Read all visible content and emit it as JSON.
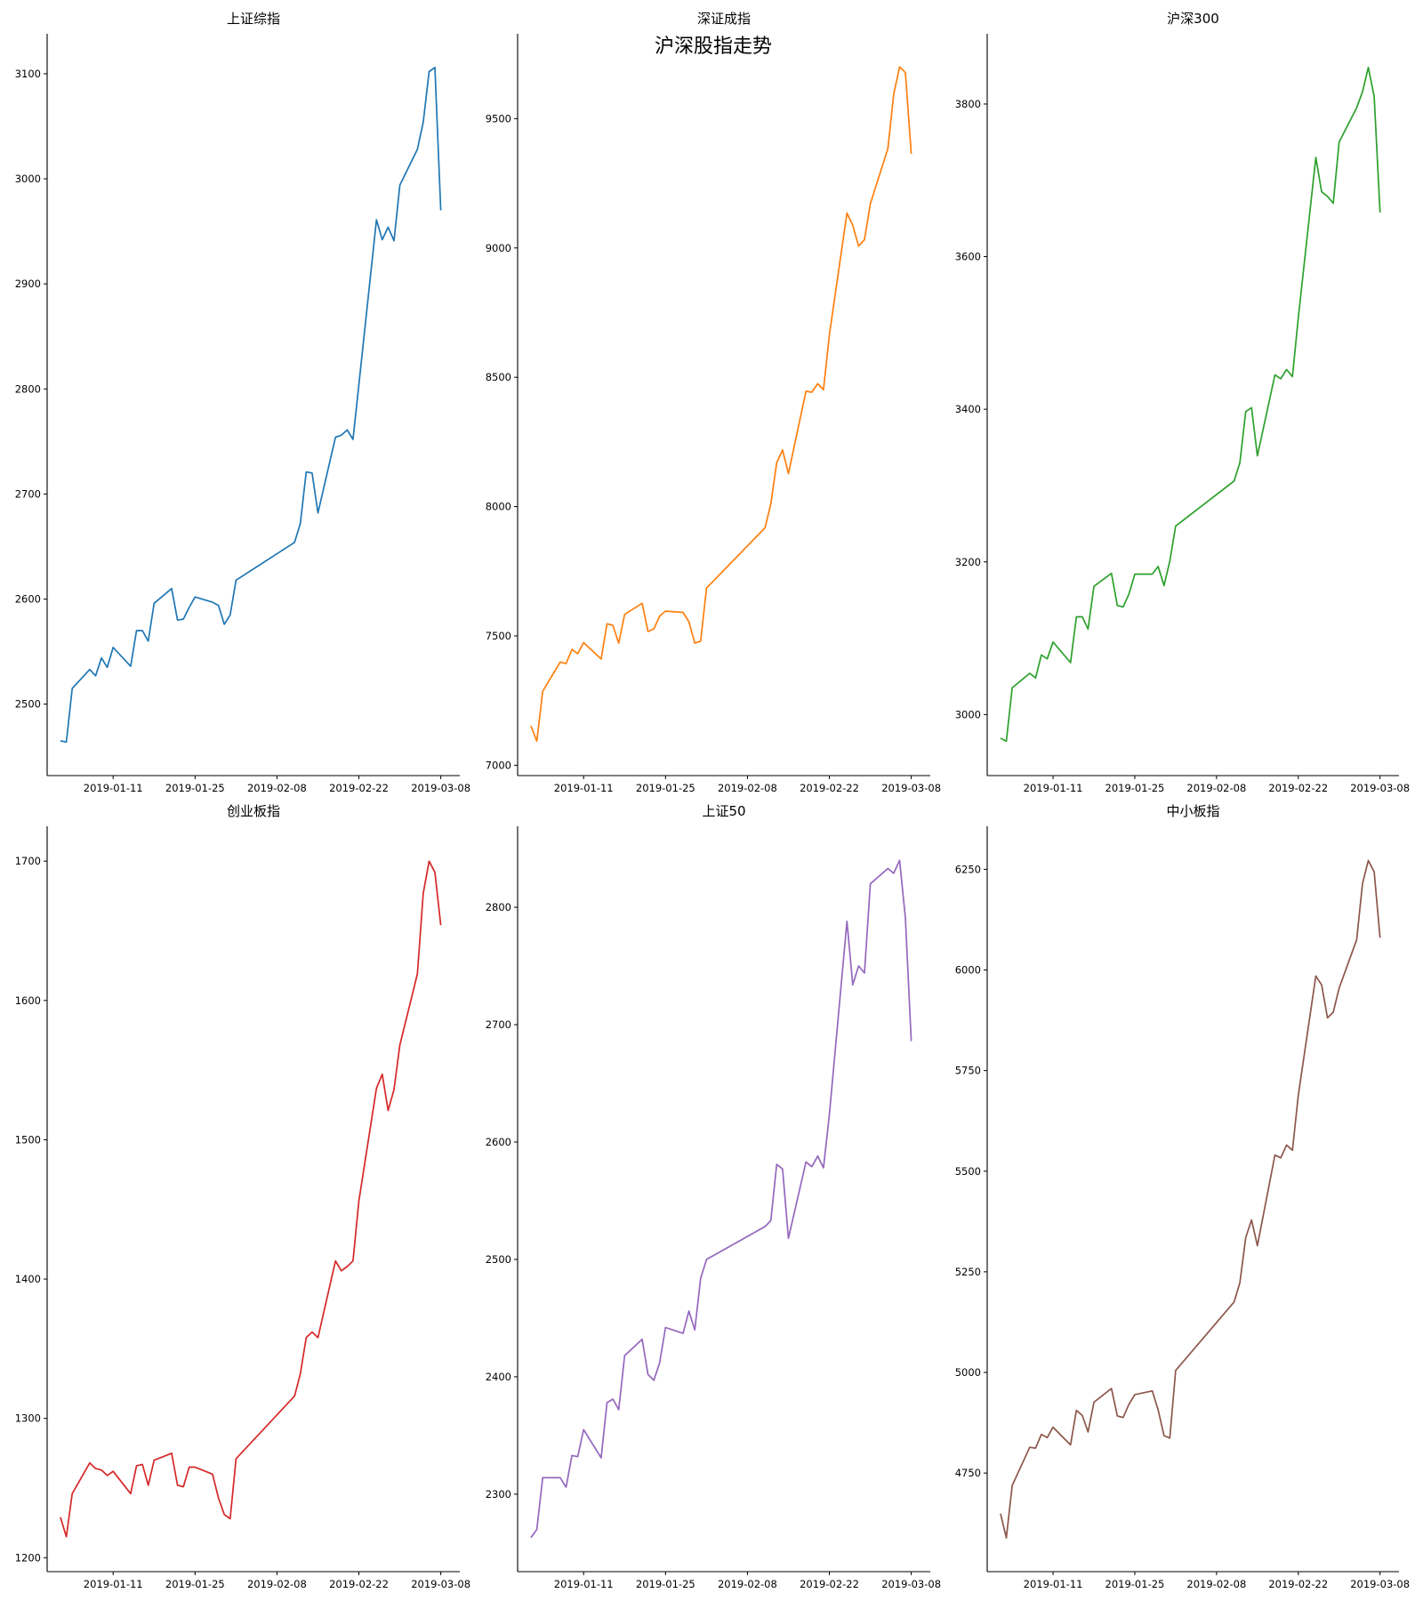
{
  "chart_data": {
    "type": "line",
    "title": "沪深股指走势",
    "x_tick_labels": [
      "2019-01-11",
      "2019-01-25",
      "2019-02-08",
      "2019-02-22",
      "2019-03-08"
    ],
    "x": [
      "2019-01-02",
      "2019-01-03",
      "2019-01-04",
      "2019-01-07",
      "2019-01-08",
      "2019-01-09",
      "2019-01-10",
      "2019-01-11",
      "2019-01-14",
      "2019-01-15",
      "2019-01-16",
      "2019-01-17",
      "2019-01-18",
      "2019-01-21",
      "2019-01-22",
      "2019-01-23",
      "2019-01-24",
      "2019-01-25",
      "2019-01-28",
      "2019-01-29",
      "2019-01-30",
      "2019-01-31",
      "2019-02-01",
      "2019-02-11",
      "2019-02-12",
      "2019-02-13",
      "2019-02-14",
      "2019-02-15",
      "2019-02-18",
      "2019-02-19",
      "2019-02-20",
      "2019-02-21",
      "2019-02-22",
      "2019-02-25",
      "2019-02-26",
      "2019-02-27",
      "2019-02-28",
      "2019-03-01",
      "2019-03-04",
      "2019-03-05",
      "2019-03-06",
      "2019-03-07",
      "2019-03-08"
    ],
    "xlim": [
      "2018-12-30",
      "2019-03-11"
    ],
    "grid": false,
    "subplots": [
      {
        "title": "上证综指",
        "color": "#1f77b4",
        "ylim": [
          2432,
          3138
        ],
        "yticks": [
          2500,
          2600,
          2700,
          2800,
          2900,
          3000,
          3100
        ],
        "values": [
          2465,
          2464,
          2515,
          2533,
          2527,
          2544,
          2535,
          2554,
          2536,
          2570,
          2570,
          2560,
          2596,
          2610,
          2580,
          2581,
          2592,
          2602,
          2597,
          2594,
          2576,
          2585,
          2618,
          2654,
          2672,
          2721,
          2720,
          2682,
          2754,
          2756,
          2761,
          2752,
          2804,
          2961,
          2942,
          2954,
          2941,
          2994,
          3028,
          3054,
          3102,
          3106,
          2970
        ]
      },
      {
        "title": "深证成指",
        "color": "#ff7f0e",
        "ylim": [
          6960,
          9828
        ],
        "yticks": [
          7000,
          7500,
          8000,
          8500,
          9000,
          9500
        ],
        "values": [
          7152,
          7093,
          7286,
          7399,
          7393,
          7448,
          7431,
          7474,
          7411,
          7547,
          7541,
          7472,
          7583,
          7626,
          7517,
          7527,
          7577,
          7596,
          7591,
          7555,
          7472,
          7480,
          7685,
          7918,
          8011,
          8169,
          8219,
          8128,
          8446,
          8442,
          8475,
          8452,
          8663,
          9135,
          9088,
          9007,
          9032,
          9171,
          9384,
          9595,
          9700,
          9678,
          9364
        ]
      },
      {
        "title": "沪深300",
        "color": "#2ca02c",
        "ylim": [
          2920,
          3892
        ],
        "yticks": [
          3000,
          3200,
          3400,
          3600,
          3800
        ],
        "values": [
          2969,
          2965,
          3035,
          3054,
          3048,
          3078,
          3073,
          3095,
          3068,
          3128,
          3128,
          3112,
          3168,
          3185,
          3143,
          3141,
          3158,
          3184,
          3184,
          3194,
          3169,
          3201,
          3247,
          3306,
          3330,
          3397,
          3402,
          3339,
          3445,
          3440,
          3452,
          3443,
          3520,
          3730,
          3685,
          3679,
          3670,
          3750,
          3795,
          3816,
          3848,
          3810,
          3658
        ]
      },
      {
        "title": "创业板指",
        "color": "#d62728",
        "ylim": [
          1190,
          1725
        ],
        "yticks": [
          1200,
          1300,
          1400,
          1500,
          1600,
          1700
        ],
        "values": [
          1229,
          1215,
          1246,
          1268,
          1264,
          1263,
          1259,
          1262,
          1246,
          1266,
          1267,
          1252,
          1270,
          1275,
          1252,
          1251,
          1265,
          1265,
          1260,
          1243,
          1231,
          1228,
          1271,
          1316,
          1332,
          1358,
          1362,
          1358,
          1413,
          1406,
          1409,
          1413,
          1456,
          1537,
          1547,
          1521,
          1536,
          1568,
          1619,
          1677,
          1700,
          1692,
          1654
        ]
      },
      {
        "title": "上证50",
        "color": "#9467bd",
        "ylim": [
          2234,
          2869
        ],
        "yticks": [
          2300,
          2400,
          2500,
          2600,
          2700,
          2800
        ],
        "values": [
          2263,
          2270,
          2314,
          2314,
          2306,
          2333,
          2332,
          2355,
          2331,
          2378,
          2381,
          2372,
          2418,
          2432,
          2402,
          2397,
          2412,
          2442,
          2437,
          2456,
          2440,
          2484,
          2500,
          2528,
          2533,
          2581,
          2577,
          2518,
          2583,
          2579,
          2588,
          2578,
          2623,
          2788,
          2734,
          2750,
          2744,
          2820,
          2833,
          2829,
          2840,
          2791,
          2686
        ]
      },
      {
        "title": "中小板指",
        "color": "#8c564b",
        "ylim": [
          4505,
          6357
        ],
        "yticks": [
          4750,
          5000,
          5250,
          5500,
          5750,
          6000,
          6250
        ],
        "values": [
          4649,
          4589,
          4719,
          4814,
          4812,
          4846,
          4838,
          4864,
          4820,
          4906,
          4893,
          4852,
          4926,
          4960,
          4892,
          4888,
          4921,
          4945,
          4954,
          4907,
          4843,
          4837,
          5005,
          5175,
          5223,
          5335,
          5379,
          5315,
          5540,
          5533,
          5565,
          5552,
          5689,
          5985,
          5963,
          5881,
          5895,
          5955,
          6075,
          6215,
          6272,
          6244,
          6080
        ]
      }
    ]
  }
}
